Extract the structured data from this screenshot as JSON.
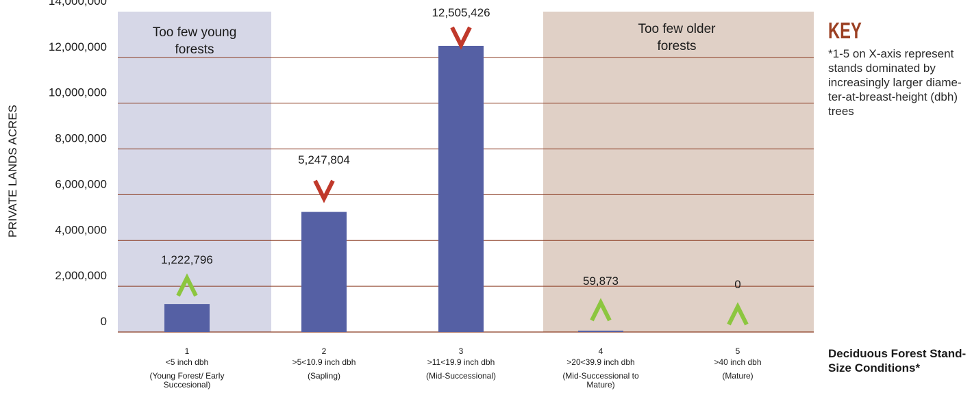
{
  "chart_data": {
    "type": "bar",
    "ylabel": "PRIVATE LANDS ACRES",
    "xlabel": "Deciduous Forest Stand-Size Conditions*",
    "ylim": [
      0,
      14000000
    ],
    "yticks": [
      "0",
      "2,000,000",
      "4,000,000",
      "6,000,000",
      "8,000,000",
      "10,000,000",
      "12,000,000",
      "14,000,000"
    ],
    "categories": [
      {
        "num": "1",
        "range": "<5 inch dbh",
        "desc": "(Young Forest/ Early Succesional)"
      },
      {
        "num": "2",
        "range": ">5<10.9 inch dbh",
        "desc": "(Sapling)"
      },
      {
        "num": "3",
        "range": ">11<19.9 inch dbh",
        "desc": "(Mid-Successional)"
      },
      {
        "num": "4",
        "range": ">20<39.9 inch dbh",
        "desc": "(Mid-Successional to Mature)"
      },
      {
        "num": "5",
        "range": ">40 inch dbh",
        "desc": "(Mature)"
      }
    ],
    "values": [
      1222796,
      5247804,
      12505426,
      59873,
      0
    ],
    "value_labels": [
      "1,222,796",
      "5,247,804",
      "12,505,426",
      "59,873",
      "0"
    ],
    "indicators": [
      "^",
      "V",
      "V",
      "^",
      "^"
    ],
    "regions": [
      {
        "label": "Too few young forests",
        "category": "1"
      },
      {
        "label": "Too few older forests",
        "category": "4-5"
      }
    ],
    "grid": true
  },
  "key": {
    "title": "KEY",
    "note": "*1-5 on X-axis represent stands dominated by increasingly larger diame-ter-at-breast-height (dbh) trees"
  },
  "x_title": "Deciduous Forest Stand-Size Conditions*",
  "colors": {
    "bar": "#5560a4",
    "young_region": "#d6d7e7",
    "old_region": "#e0d0c6",
    "gridline": "#8a3a20",
    "up_arrow": "#8cc63f",
    "down_arrow": "#c0392b",
    "key_title": "#9b3f22"
  }
}
